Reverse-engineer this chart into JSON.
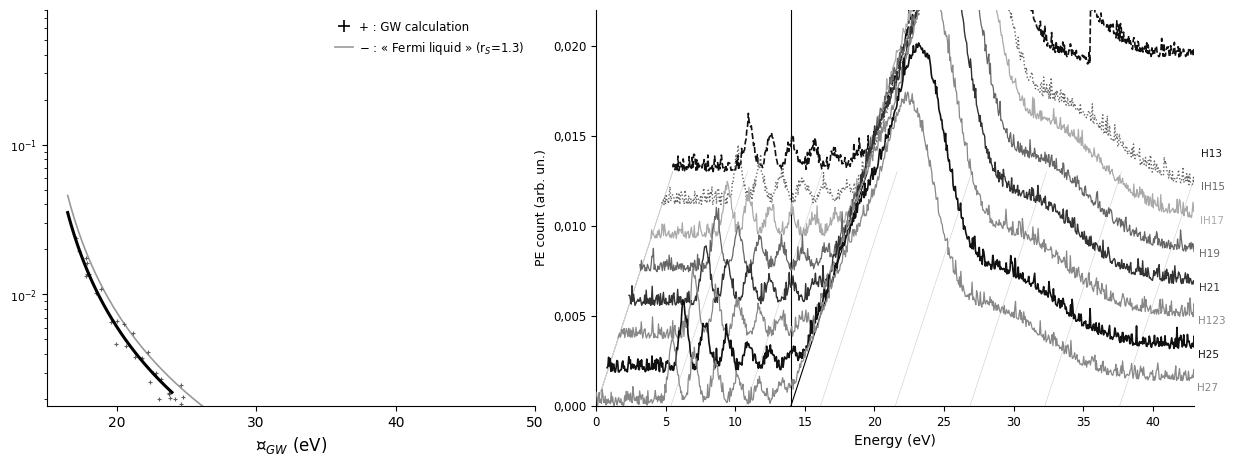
{
  "left_xlabel": "$\\mathcal{E}_{GW}$ (eV)",
  "left_xlim": [
    15,
    50
  ],
  "left_xticks": [
    20,
    30,
    40,
    50
  ],
  "left_xtick_labels": [
    "20",
    "30",
    "40",
    "50"
  ],
  "legend_gw": "+ : GW calculation",
  "legend_fl": "- : « Fermi liquid » (r$_S$=1.3)",
  "right_xlabel": "Energy (eV)",
  "right_ylabel": "PE count (arb. un.)",
  "right_xlim": [
    0,
    43
  ],
  "right_ylim": [
    0.0,
    0.022
  ],
  "right_yticks": [
    0.0,
    0.005,
    0.01,
    0.015,
    0.02
  ],
  "right_ytick_labels": [
    "0,000",
    "0,005",
    "0,010",
    "0,015",
    "0,020"
  ],
  "right_xticks": [
    0,
    5,
    10,
    15,
    20,
    25,
    30,
    35,
    40
  ],
  "right_xtick_labels": [
    "0",
    "5",
    "10",
    "15",
    "20",
    "25",
    "30",
    "35",
    "40"
  ],
  "harmonic_labels": [
    "H13",
    "IH15",
    "IH17",
    "H19",
    "H21",
    "H123",
    "H25",
    "H27"
  ],
  "harmonic_display": [
    "H13",
    "IH15",
    "IH17",
    "H19",
    "H21",
    "H123",
    "H25",
    "H27"
  ]
}
